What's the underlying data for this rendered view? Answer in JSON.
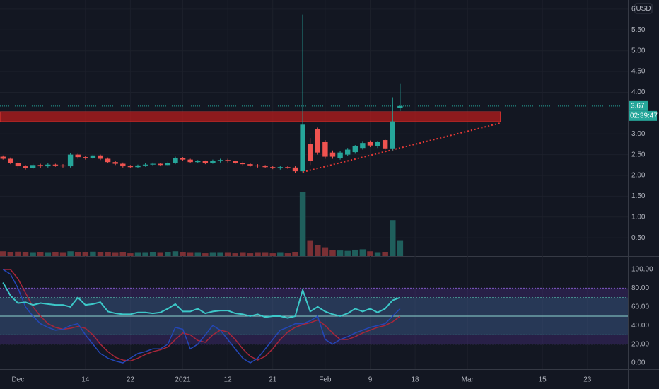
{
  "chart_data": {
    "type": "candlestick",
    "currency": "USD",
    "last_price_label": "3.67",
    "countdown": "02:39:47",
    "colors": {
      "up": "#26a69a",
      "down": "#ef5350",
      "up_volume": "#1f5f5c",
      "down_volume": "#7a3035",
      "zone": "#b71c1c",
      "rsi": "#3cc8c8",
      "k": "#2447b8",
      "d": "#a8263a"
    },
    "xlim": [
      -0.4,
      83.4
    ],
    "xticks": [
      {
        "value": 2,
        "label": "Dec"
      },
      {
        "value": 11,
        "label": "14"
      },
      {
        "value": 17,
        "label": "22"
      },
      {
        "value": 24,
        "label": "2021"
      },
      {
        "value": 30,
        "label": "12"
      },
      {
        "value": 36,
        "label": "21"
      },
      {
        "value": 43,
        "label": "Feb"
      },
      {
        "value": 49,
        "label": "9"
      },
      {
        "value": 55,
        "label": "18"
      },
      {
        "value": 62,
        "label": "Mar"
      },
      {
        "value": 72,
        "label": "15"
      },
      {
        "value": 78,
        "label": "23"
      }
    ],
    "ylim": [
      0.06,
      6.22
    ],
    "yticks": [
      6,
      {
        "value": 5.5,
        "label": "5.50"
      },
      {
        "value": 5,
        "label": "5.00"
      },
      {
        "value": 4.5,
        "label": "4.50"
      },
      {
        "value": 4,
        "label": "4.00"
      },
      {
        "value": 3,
        "label": "3.00"
      },
      {
        "value": 2.5,
        "label": "2.50"
      },
      {
        "value": 2,
        "label": "2.00"
      },
      {
        "value": 1.5,
        "label": "1.50"
      },
      {
        "value": 1,
        "label": "1.00"
      },
      {
        "value": 0.5,
        "label": "0.50"
      }
    ],
    "grid": true,
    "open": [
      2.45,
      2.4,
      2.3,
      2.22,
      2.18,
      2.25,
      2.22,
      2.26,
      2.24,
      2.22,
      2.5,
      2.44,
      2.42,
      2.48,
      2.4,
      2.32,
      2.28,
      2.22,
      2.2,
      2.24,
      2.26,
      2.28,
      2.25,
      2.3,
      2.42,
      2.38,
      2.32,
      2.34,
      2.3,
      2.35,
      2.37,
      2.34,
      2.3,
      2.27,
      2.24,
      2.22,
      2.2,
      2.18,
      2.2,
      2.19,
      2.1,
      2.75,
      3.12,
      2.8,
      2.55,
      2.42,
      2.5,
      2.56,
      2.66,
      2.8,
      2.7,
      2.85,
      2.65,
      3.62
    ],
    "high": [
      2.48,
      2.43,
      2.33,
      2.25,
      2.28,
      2.28,
      2.29,
      2.28,
      2.27,
      2.53,
      2.52,
      2.47,
      2.5,
      2.5,
      2.43,
      2.35,
      2.31,
      2.25,
      2.26,
      2.29,
      2.31,
      2.3,
      2.33,
      2.45,
      2.44,
      2.4,
      2.37,
      2.36,
      2.38,
      2.4,
      2.4,
      2.36,
      2.33,
      2.3,
      2.27,
      2.25,
      2.23,
      2.23,
      2.22,
      2.22,
      5.87,
      2.9,
      3.15,
      2.85,
      2.6,
      2.58,
      2.66,
      2.73,
      2.81,
      2.84,
      2.83,
      2.88,
      3.88,
      4.2
    ],
    "low": [
      2.38,
      2.27,
      2.15,
      2.14,
      2.15,
      2.18,
      2.19,
      2.21,
      2.19,
      2.19,
      2.4,
      2.38,
      2.39,
      2.37,
      2.29,
      2.25,
      2.19,
      2.17,
      2.17,
      2.21,
      2.23,
      2.22,
      2.22,
      2.27,
      2.35,
      2.29,
      2.29,
      2.27,
      2.28,
      2.31,
      2.31,
      2.27,
      2.24,
      2.21,
      2.19,
      2.17,
      2.15,
      2.14,
      2.16,
      2.06,
      2.07,
      2.25,
      2.5,
      2.4,
      2.4,
      2.38,
      2.47,
      2.52,
      2.62,
      2.68,
      2.66,
      2.6,
      2.6,
      3.55
    ],
    "close": [
      2.4,
      2.3,
      2.22,
      2.18,
      2.25,
      2.22,
      2.26,
      2.24,
      2.22,
      2.5,
      2.44,
      2.42,
      2.48,
      2.4,
      2.32,
      2.28,
      2.22,
      2.2,
      2.24,
      2.26,
      2.28,
      2.25,
      2.3,
      2.42,
      2.38,
      2.32,
      2.34,
      2.3,
      2.35,
      2.37,
      2.34,
      2.3,
      2.27,
      2.24,
      2.22,
      2.2,
      2.18,
      2.2,
      2.19,
      2.1,
      3.22,
      2.35,
      2.55,
      2.45,
      2.45,
      2.55,
      2.62,
      2.7,
      2.78,
      2.72,
      2.8,
      2.65,
      3.3,
      3.67
    ],
    "volume": [
      0.12,
      0.1,
      0.11,
      0.09,
      0.08,
      0.09,
      0.08,
      0.09,
      0.08,
      0.12,
      0.1,
      0.09,
      0.11,
      0.1,
      0.09,
      0.08,
      0.09,
      0.07,
      0.08,
      0.08,
      0.09,
      0.08,
      0.1,
      0.12,
      0.09,
      0.08,
      0.08,
      0.07,
      0.08,
      0.08,
      0.08,
      0.07,
      0.08,
      0.07,
      0.08,
      0.08,
      0.07,
      0.08,
      0.07,
      0.1,
      1.6,
      0.38,
      0.28,
      0.22,
      0.15,
      0.14,
      0.13,
      0.16,
      0.17,
      0.12,
      0.08,
      0.1,
      0.9,
      0.38
    ],
    "volume_lim": [
      0,
      1.86
    ],
    "zone": {
      "top": 3.53,
      "bottom": 3.29,
      "end": 66.4
    },
    "trendline": {
      "x": [
        40,
        66.4
      ],
      "y": [
        2.08,
        3.26
      ]
    },
    "oscillator": {
      "ylim": [
        -6.8,
        114.4
      ],
      "yticks": [
        {
          "value": 100,
          "label": "100.00"
        },
        {
          "value": 80,
          "label": "80.00"
        },
        {
          "value": 60,
          "label": "60.00"
        },
        {
          "value": 40,
          "label": "40.00"
        },
        {
          "value": 20,
          "label": "20.00"
        },
        {
          "value": 0,
          "label": "0.00"
        }
      ],
      "outer_band": [
        20,
        80
      ],
      "inner_band": [
        30,
        70
      ],
      "mid_level": 50,
      "rsi": [
        86,
        72,
        64,
        65,
        62,
        64,
        63,
        62,
        62,
        60,
        70,
        62,
        63,
        65,
        55,
        53,
        52,
        52,
        54,
        54,
        53,
        54,
        58,
        63,
        55,
        55,
        58,
        53,
        55,
        56,
        56,
        53,
        52,
        50,
        52,
        49,
        50,
        50,
        48,
        50,
        78,
        55,
        60,
        55,
        52,
        50,
        53,
        58,
        55,
        58,
        54,
        58,
        67,
        70
      ],
      "k": [
        100,
        95,
        80,
        60,
        50,
        42,
        38,
        35,
        36,
        40,
        42,
        30,
        20,
        10,
        5,
        2,
        0,
        5,
        10,
        12,
        15,
        15,
        20,
        38,
        36,
        15,
        20,
        30,
        40,
        35,
        25,
        15,
        5,
        0,
        5,
        15,
        25,
        35,
        38,
        42,
        42,
        45,
        50,
        25,
        20,
        25,
        28,
        32,
        35,
        38,
        40,
        42,
        50,
        58
      ],
      "d": [
        100,
        100,
        90,
        75,
        60,
        50,
        42,
        38,
        36,
        37,
        39,
        37,
        30,
        20,
        12,
        6,
        3,
        2,
        5,
        9,
        12,
        14,
        17,
        25,
        32,
        30,
        24,
        22,
        30,
        35,
        33,
        25,
        15,
        7,
        3,
        7,
        15,
        25,
        33,
        38,
        41,
        43,
        46,
        40,
        32,
        25,
        25,
        28,
        32,
        35,
        38,
        40,
        44,
        50
      ]
    }
  }
}
